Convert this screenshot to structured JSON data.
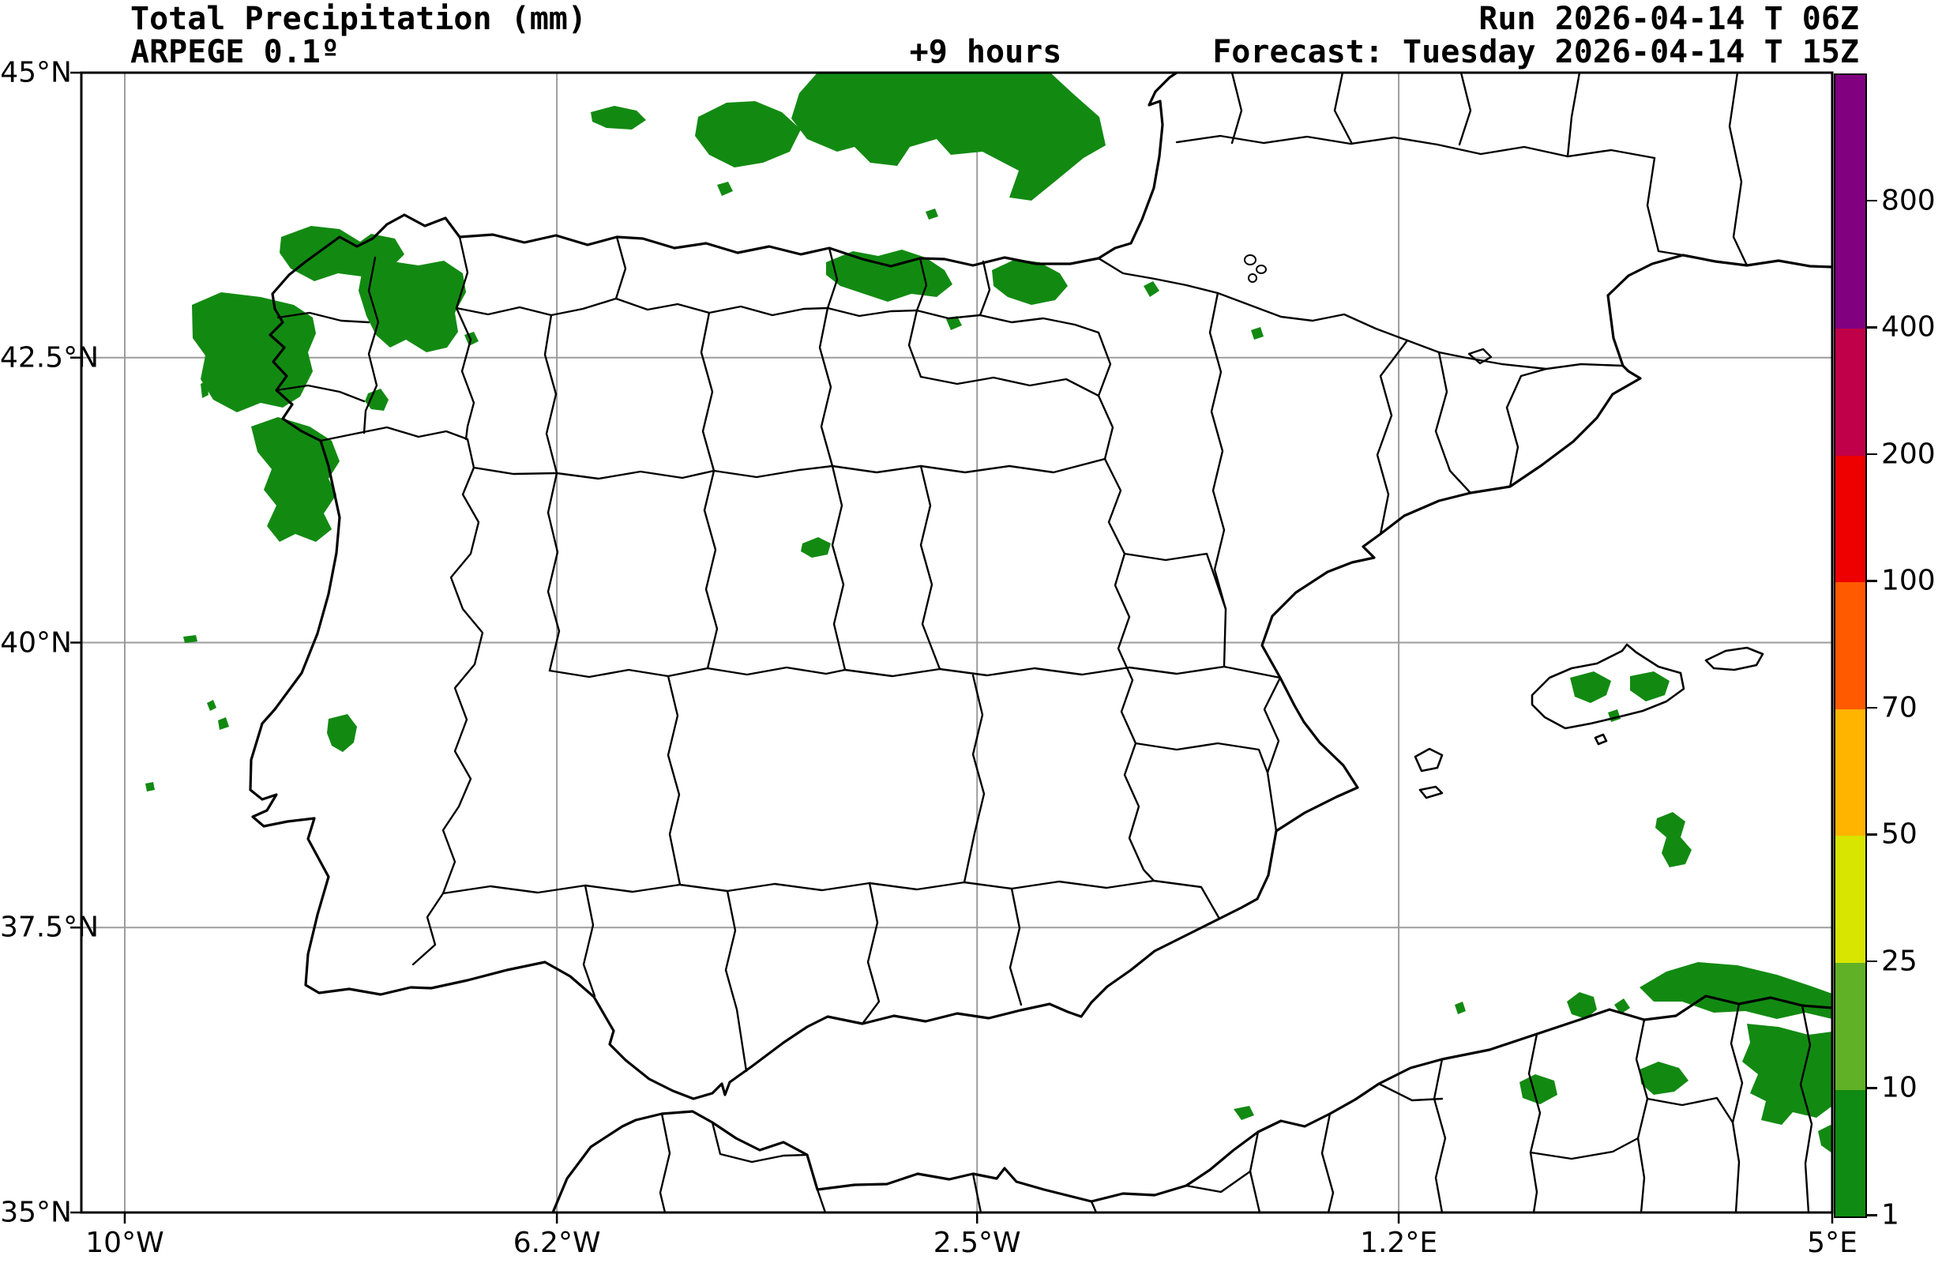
{
  "header": {
    "title": "Total Precipitation (mm)",
    "model": "ARPEGE 0.1º",
    "lead_time": "+9 hours",
    "run": "Run 2026-04-14 T 06Z",
    "forecast": "Forecast: Tuesday 2026-04-14 T 15Z"
  },
  "colors": {
    "precip_green": "#128A12",
    "grid_gray": "#9C9C9C",
    "outline_black": "#000000",
    "background": "#FFFFFF"
  },
  "axes": {
    "x_ticks": [
      {
        "label": "10°W",
        "pos": 0.0248,
        "grid": true
      },
      {
        "label": "6.2°W",
        "pos": 0.2716,
        "grid": true
      },
      {
        "label": "2.5°W",
        "pos": 0.5116,
        "grid": true
      },
      {
        "label": "1.2°E",
        "pos": 0.7524,
        "grid": true
      },
      {
        "label": "5°E",
        "pos": 1.0,
        "grid": false
      }
    ],
    "y_ticks": [
      {
        "label": "45°N",
        "pos": 0.0,
        "grid": false
      },
      {
        "label": "42.5°N",
        "pos": 0.25,
        "grid": true
      },
      {
        "label": "40°N",
        "pos": 0.5,
        "grid": true
      },
      {
        "label": "37.5°N",
        "pos": 0.75,
        "grid": true
      },
      {
        "label": "35°N",
        "pos": 1.0,
        "grid": false
      }
    ]
  },
  "colorbar": {
    "tick_labels": [
      "800",
      "400",
      "200",
      "100",
      "70",
      "50",
      "25",
      "10",
      "1"
    ],
    "segments_top_to_bottom": [
      {
        "range": "> 800",
        "color": "#800080"
      },
      {
        "range": "400-800",
        "color": "#800080"
      },
      {
        "range": "200-400",
        "color": "#C00048"
      },
      {
        "range": "100-200",
        "color": "#EE0000"
      },
      {
        "range": "70-100",
        "color": "#FF5A00"
      },
      {
        "range": "50-70",
        "color": "#FFB400"
      },
      {
        "range": "25-50",
        "color": "#D7E500"
      },
      {
        "range": "10-25",
        "color": "#61B126"
      },
      {
        "range": "1-10",
        "color": "#0F8A12"
      }
    ]
  },
  "chart_data": {
    "type": "heatmap",
    "subtype": "filled-contour precipitation forecast map",
    "title": "Total Precipitation (mm)",
    "model": "ARPEGE 0.1º",
    "run": "2026-04-14 06Z",
    "valid": "Tuesday 2026-04-14 15Z",
    "lead_hours": 9,
    "extent": {
      "lon_min": -10.4,
      "lon_max": 5.0,
      "lat_min": 35.0,
      "lat_max": 45.0
    },
    "x_tick_values": [
      "10°W",
      "6.2°W",
      "2.5°W",
      "1.2°E",
      "5°E"
    ],
    "y_tick_values": [
      "45°N",
      "42.5°N",
      "40°N",
      "37.5°N",
      "35°N"
    ],
    "levels_mm": [
      1,
      10,
      25,
      50,
      70,
      100,
      200,
      400,
      800
    ],
    "level_colors": [
      "#0F8A12",
      "#61B126",
      "#D7E500",
      "#FFB400",
      "#FF5A00",
      "#EE0000",
      "#C00048",
      "#800080",
      "#800080"
    ],
    "grid": true,
    "legend_position": "right colorbar",
    "precipitation_areas": [
      {
        "region": "Bay of Biscay / SW France (top centre, touches map top edge)",
        "band_mm": "1-10"
      },
      {
        "region": "Galicia and NW Spain (large multi-lobe area)",
        "band_mm": "1-10"
      },
      {
        "region": "Cantabrian / Basque coast patches",
        "band_mm": "1-10"
      },
      {
        "region": "Northern Portugal / southern Galicia cluster",
        "band_mm": "1-10"
      },
      {
        "region": "Small spots along central Portuguese coast and near Lisbon",
        "band_mm": "1-10"
      },
      {
        "region": "Small spot in Iberian System (~1.5°W, 40.3°N)",
        "band_mm": "1-10"
      },
      {
        "region": "Mallorca, Balearic Islands",
        "band_mm": "1-10"
      },
      {
        "region": "Sea area SE of Mallorca",
        "band_mm": "1-10"
      },
      {
        "region": "Tell Atlas, northern Algeria (bottom right, to map edge)",
        "band_mm": "1-10"
      },
      {
        "region": "Algerian coast near Oran (tiny spot)",
        "band_mm": "1-10"
      }
    ]
  }
}
